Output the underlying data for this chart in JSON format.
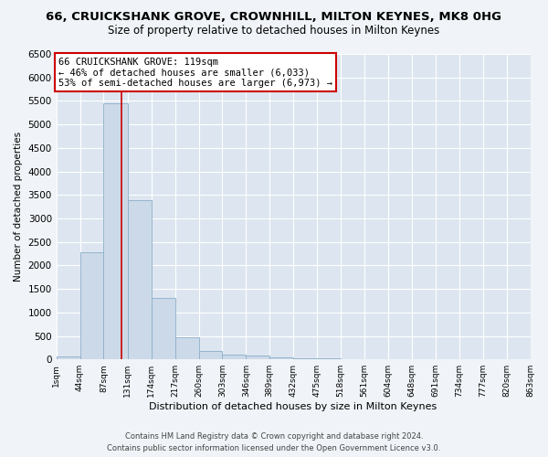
{
  "title": "66, CRUICKSHANK GROVE, CROWNHILL, MILTON KEYNES, MK8 0HG",
  "subtitle": "Size of property relative to detached houses in Milton Keynes",
  "xlabel": "Distribution of detached houses by size in Milton Keynes",
  "ylabel": "Number of detached properties",
  "bar_color": "#ccd9e8",
  "bar_edgecolor": "#8aafc8",
  "axes_bg": "#dde6f0",
  "fig_bg": "#f0f4f8",
  "vline_x": 119,
  "vline_color": "#cc0000",
  "annotation_text": "66 CRUICKSHANK GROVE: 119sqm\n← 46% of detached houses are smaller (6,033)\n53% of semi-detached houses are larger (6,973) →",
  "footer": "Contains HM Land Registry data © Crown copyright and database right 2024.\nContains public sector information licensed under the Open Government Licence v3.0.",
  "bin_edges": [
    1,
    44,
    87,
    131,
    174,
    217,
    260,
    303,
    346,
    389,
    432,
    475,
    518,
    561,
    604,
    648,
    691,
    734,
    777,
    820,
    863
  ],
  "bin_counts": [
    60,
    2280,
    5450,
    3380,
    1300,
    480,
    170,
    100,
    80,
    50,
    30,
    20,
    10,
    5,
    3,
    2,
    2,
    2,
    1,
    1
  ],
  "ylim": [
    0,
    6500
  ],
  "yticks": [
    0,
    500,
    1000,
    1500,
    2000,
    2500,
    3000,
    3500,
    4000,
    4500,
    5000,
    5500,
    6000,
    6500
  ]
}
